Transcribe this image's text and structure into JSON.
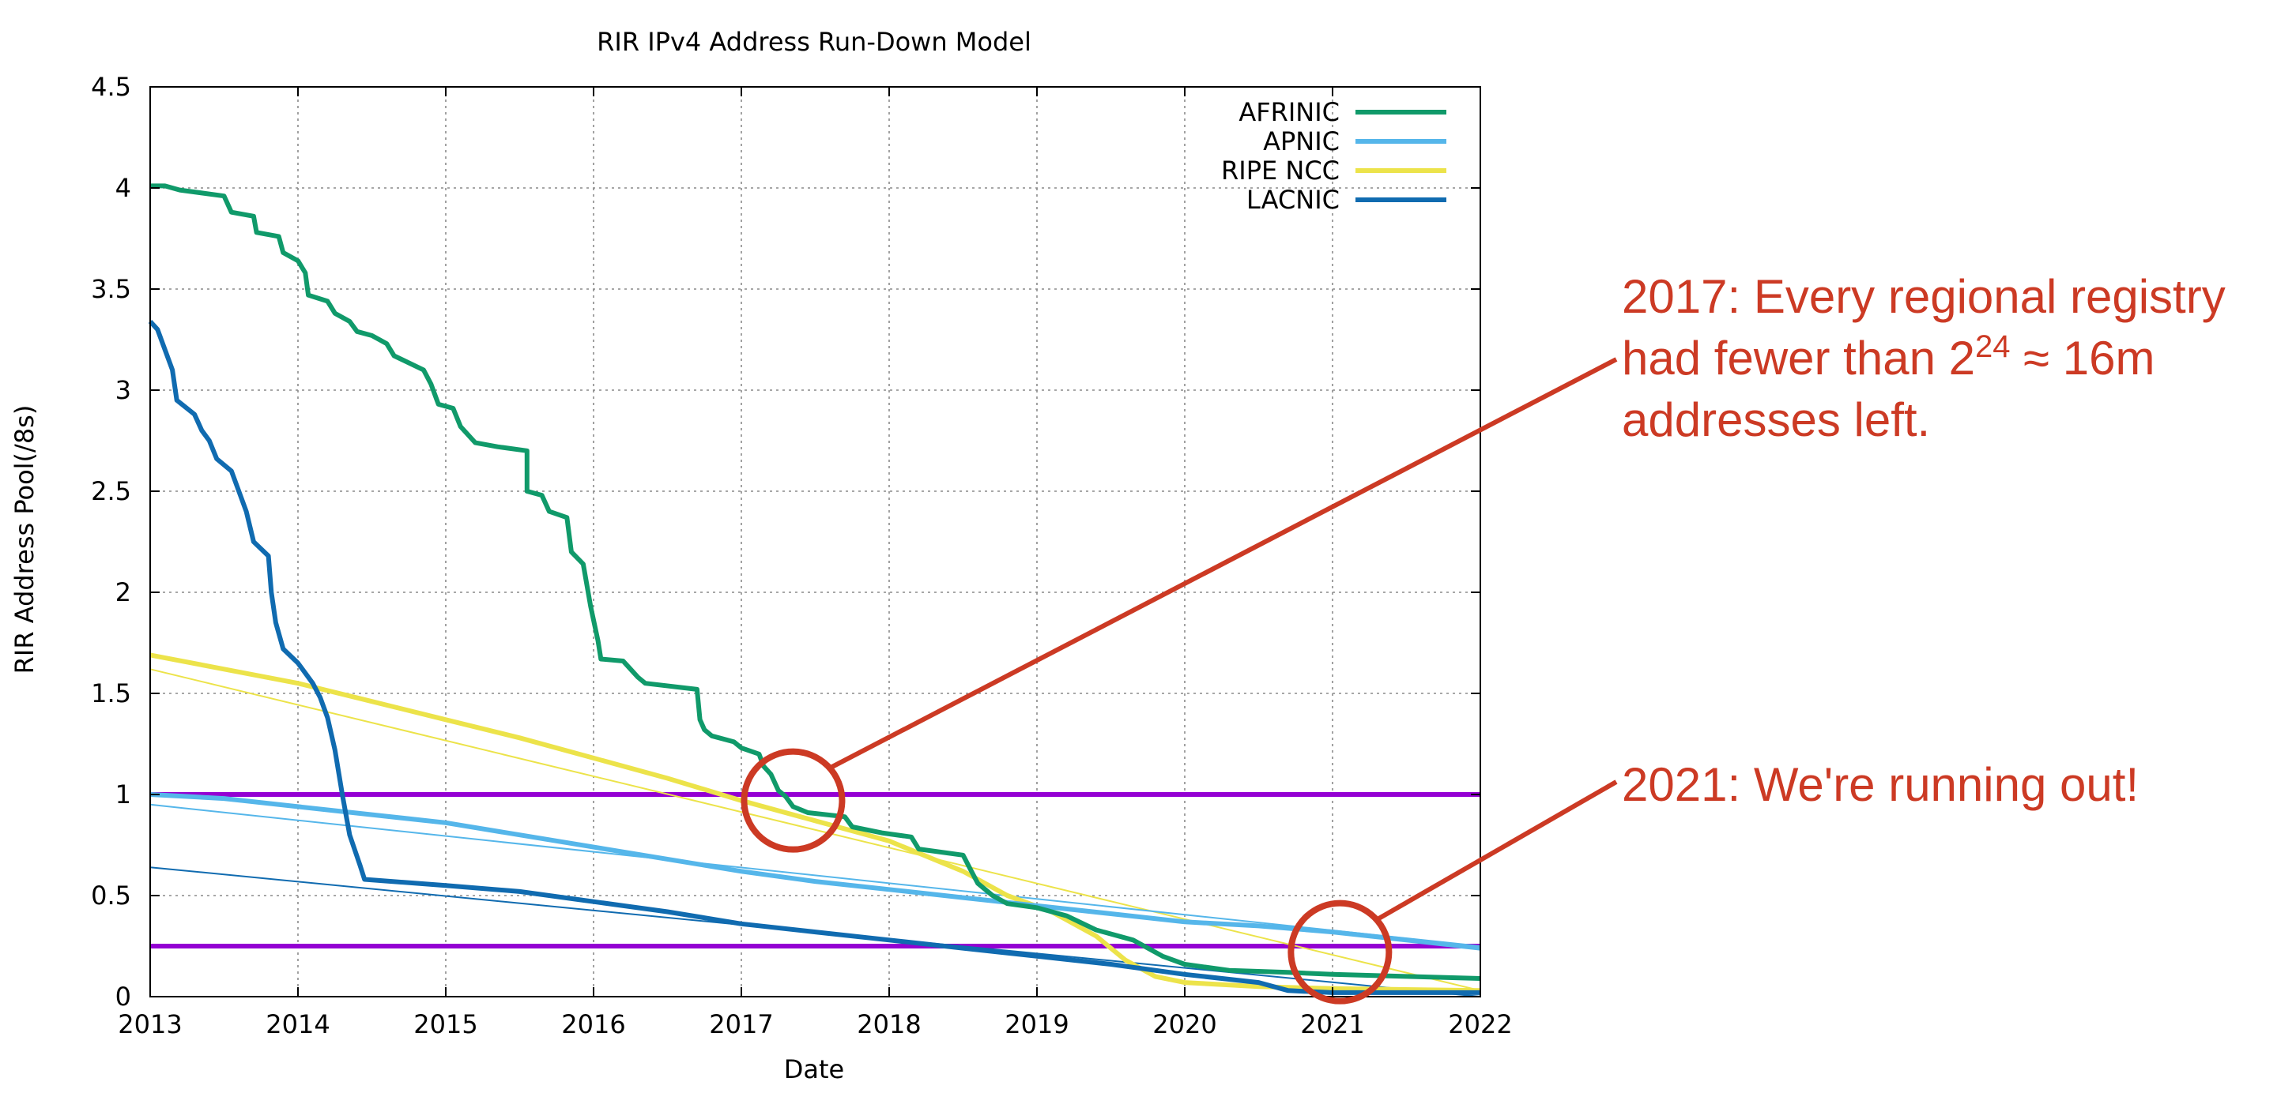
{
  "chart_data": {
    "type": "line",
    "title": "RIR IPv4 Address Run-Down Model",
    "xlabel": "Date",
    "ylabel": "RIR Address Pool(/8s)",
    "xlim": [
      2013,
      2022
    ],
    "ylim": [
      0,
      4.5
    ],
    "x_ticks": [
      "2013",
      "2014",
      "2015",
      "2016",
      "2017",
      "2018",
      "2019",
      "2020",
      "2021",
      "2022"
    ],
    "y_ticks": [
      "0",
      "0.5",
      "1",
      "1.5",
      "2",
      "2.5",
      "3",
      "3.5",
      "4",
      "4.5"
    ],
    "grid": true,
    "legend_position": "top-right",
    "colors": {
      "afrinic": "#109a6a",
      "apnic": "#55b6ea",
      "ripe": "#ece34a",
      "lacnic": "#106bb0",
      "threshold": "#9400d3",
      "annotation": "#cc3a24"
    },
    "series": [
      {
        "name": "AFRINIC",
        "key": "afrinic",
        "points": [
          [
            2013.0,
            4.01
          ],
          [
            2013.1,
            4.01
          ],
          [
            2013.2,
            3.99
          ],
          [
            2013.3,
            3.98
          ],
          [
            2013.5,
            3.96
          ],
          [
            2013.55,
            3.88
          ],
          [
            2013.7,
            3.86
          ],
          [
            2013.72,
            3.78
          ],
          [
            2013.87,
            3.76
          ],
          [
            2013.9,
            3.68
          ],
          [
            2014.0,
            3.64
          ],
          [
            2014.05,
            3.58
          ],
          [
            2014.07,
            3.47
          ],
          [
            2014.2,
            3.44
          ],
          [
            2014.25,
            3.38
          ],
          [
            2014.35,
            3.34
          ],
          [
            2014.4,
            3.29
          ],
          [
            2014.5,
            3.27
          ],
          [
            2014.6,
            3.23
          ],
          [
            2014.65,
            3.17
          ],
          [
            2014.85,
            3.1
          ],
          [
            2014.9,
            3.03
          ],
          [
            2014.95,
            2.93
          ],
          [
            2015.05,
            2.91
          ],
          [
            2015.1,
            2.82
          ],
          [
            2015.2,
            2.74
          ],
          [
            2015.35,
            2.72
          ],
          [
            2015.55,
            2.7
          ],
          [
            2015.55,
            2.5
          ],
          [
            2015.65,
            2.48
          ],
          [
            2015.7,
            2.4
          ],
          [
            2015.82,
            2.37
          ],
          [
            2015.85,
            2.2
          ],
          [
            2015.93,
            2.14
          ],
          [
            2015.98,
            1.93
          ],
          [
            2016.03,
            1.76
          ],
          [
            2016.05,
            1.67
          ],
          [
            2016.2,
            1.66
          ],
          [
            2016.25,
            1.62
          ],
          [
            2016.3,
            1.58
          ],
          [
            2016.35,
            1.55
          ],
          [
            2016.7,
            1.52
          ],
          [
            2016.72,
            1.37
          ],
          [
            2016.75,
            1.32
          ],
          [
            2016.8,
            1.29
          ],
          [
            2016.95,
            1.26
          ],
          [
            2017.0,
            1.23
          ],
          [
            2017.12,
            1.2
          ],
          [
            2017.15,
            1.14
          ],
          [
            2017.2,
            1.1
          ],
          [
            2017.25,
            1.02
          ],
          [
            2017.3,
            0.99
          ],
          [
            2017.35,
            0.94
          ],
          [
            2017.45,
            0.91
          ],
          [
            2017.7,
            0.89
          ],
          [
            2017.75,
            0.84
          ],
          [
            2017.95,
            0.81
          ],
          [
            2018.15,
            0.79
          ],
          [
            2018.2,
            0.73
          ],
          [
            2018.5,
            0.7
          ],
          [
            2018.55,
            0.63
          ],
          [
            2018.6,
            0.56
          ],
          [
            2018.7,
            0.5
          ],
          [
            2018.8,
            0.46
          ],
          [
            2019.0,
            0.44
          ],
          [
            2019.1,
            0.42
          ],
          [
            2019.2,
            0.4
          ],
          [
            2019.4,
            0.33
          ],
          [
            2019.65,
            0.28
          ],
          [
            2019.85,
            0.2
          ],
          [
            2020.0,
            0.16
          ],
          [
            2020.1,
            0.15
          ],
          [
            2020.3,
            0.13
          ],
          [
            2020.7,
            0.12
          ],
          [
            2021.0,
            0.11
          ],
          [
            2021.5,
            0.1
          ],
          [
            2022.0,
            0.09
          ]
        ]
      },
      {
        "name": "APNIC",
        "key": "apnic",
        "points": [
          [
            2013.0,
            1.0
          ],
          [
            2013.5,
            0.98
          ],
          [
            2014.0,
            0.94
          ],
          [
            2014.5,
            0.9
          ],
          [
            2015.0,
            0.86
          ],
          [
            2015.5,
            0.8
          ],
          [
            2016.0,
            0.74
          ],
          [
            2016.5,
            0.68
          ],
          [
            2017.0,
            0.62
          ],
          [
            2017.5,
            0.57
          ],
          [
            2018.0,
            0.53
          ],
          [
            2018.5,
            0.49
          ],
          [
            2019.0,
            0.45
          ],
          [
            2019.5,
            0.41
          ],
          [
            2020.0,
            0.37
          ],
          [
            2020.5,
            0.35
          ],
          [
            2021.0,
            0.32
          ],
          [
            2021.5,
            0.28
          ],
          [
            2022.0,
            0.24
          ]
        ]
      },
      {
        "name": "RIPE NCC",
        "key": "ripe",
        "points": [
          [
            2013.0,
            1.69
          ],
          [
            2013.5,
            1.62
          ],
          [
            2014.0,
            1.55
          ],
          [
            2014.5,
            1.46
          ],
          [
            2015.0,
            1.37
          ],
          [
            2015.5,
            1.28
          ],
          [
            2016.0,
            1.18
          ],
          [
            2016.5,
            1.08
          ],
          [
            2017.0,
            0.97
          ],
          [
            2017.5,
            0.87
          ],
          [
            2018.0,
            0.77
          ],
          [
            2018.5,
            0.62
          ],
          [
            2018.8,
            0.5
          ],
          [
            2019.1,
            0.42
          ],
          [
            2019.4,
            0.3
          ],
          [
            2019.6,
            0.18
          ],
          [
            2019.8,
            0.1
          ],
          [
            2020.0,
            0.07
          ],
          [
            2020.5,
            0.05
          ],
          [
            2021.0,
            0.04
          ],
          [
            2022.0,
            0.03
          ]
        ]
      },
      {
        "name": "LACNIC",
        "key": "lacnic",
        "points": [
          [
            2013.0,
            3.34
          ],
          [
            2013.05,
            3.3
          ],
          [
            2013.1,
            3.2
          ],
          [
            2013.15,
            3.1
          ],
          [
            2013.18,
            2.95
          ],
          [
            2013.3,
            2.88
          ],
          [
            2013.35,
            2.8
          ],
          [
            2013.4,
            2.75
          ],
          [
            2013.45,
            2.66
          ],
          [
            2013.55,
            2.6
          ],
          [
            2013.6,
            2.5
          ],
          [
            2013.65,
            2.4
          ],
          [
            2013.7,
            2.25
          ],
          [
            2013.8,
            2.18
          ],
          [
            2013.82,
            2.0
          ],
          [
            2013.85,
            1.85
          ],
          [
            2013.9,
            1.72
          ],
          [
            2014.0,
            1.65
          ],
          [
            2014.1,
            1.55
          ],
          [
            2014.15,
            1.48
          ],
          [
            2014.2,
            1.38
          ],
          [
            2014.25,
            1.22
          ],
          [
            2014.3,
            1.0
          ],
          [
            2014.35,
            0.8
          ],
          [
            2014.42,
            0.65
          ],
          [
            2014.45,
            0.58
          ],
          [
            2015.0,
            0.55
          ],
          [
            2015.5,
            0.52
          ],
          [
            2016.0,
            0.47
          ],
          [
            2016.5,
            0.42
          ],
          [
            2017.0,
            0.36
          ],
          [
            2017.5,
            0.32
          ],
          [
            2018.0,
            0.28
          ],
          [
            2018.5,
            0.24
          ],
          [
            2019.0,
            0.2
          ],
          [
            2019.5,
            0.16
          ],
          [
            2020.0,
            0.11
          ],
          [
            2020.5,
            0.07
          ],
          [
            2020.7,
            0.03
          ],
          [
            2021.0,
            0.02
          ],
          [
            2022.0,
            0.02
          ]
        ]
      }
    ],
    "trend_lines": [
      {
        "key": "ripe",
        "points": [
          [
            2013.0,
            1.62
          ],
          [
            2022.0,
            0.03
          ]
        ]
      },
      {
        "key": "apnic",
        "points": [
          [
            2013.0,
            0.95
          ],
          [
            2022.0,
            0.25
          ]
        ]
      },
      {
        "key": "lacnic",
        "points": [
          [
            2013.0,
            0.64
          ],
          [
            2022.0,
            0.0
          ]
        ]
      }
    ],
    "reference_lines": [
      {
        "y": 1.0,
        "color_key": "threshold"
      },
      {
        "y": 0.25,
        "color_key": "threshold"
      }
    ],
    "annotations": [
      {
        "id": "annotation-2017",
        "line1_before": "2017: Every regional registry",
        "line2_prefix": "had fewer than 2",
        "line2_sup": "24",
        "line2_suffix": " ≈ 16m",
        "line3": "addresses left.",
        "circle_at": [
          2017.35,
          0.97
        ]
      },
      {
        "id": "annotation-2021",
        "text": "2021: We're running out!",
        "circle_at": [
          2021.05,
          0.22
        ]
      }
    ]
  }
}
